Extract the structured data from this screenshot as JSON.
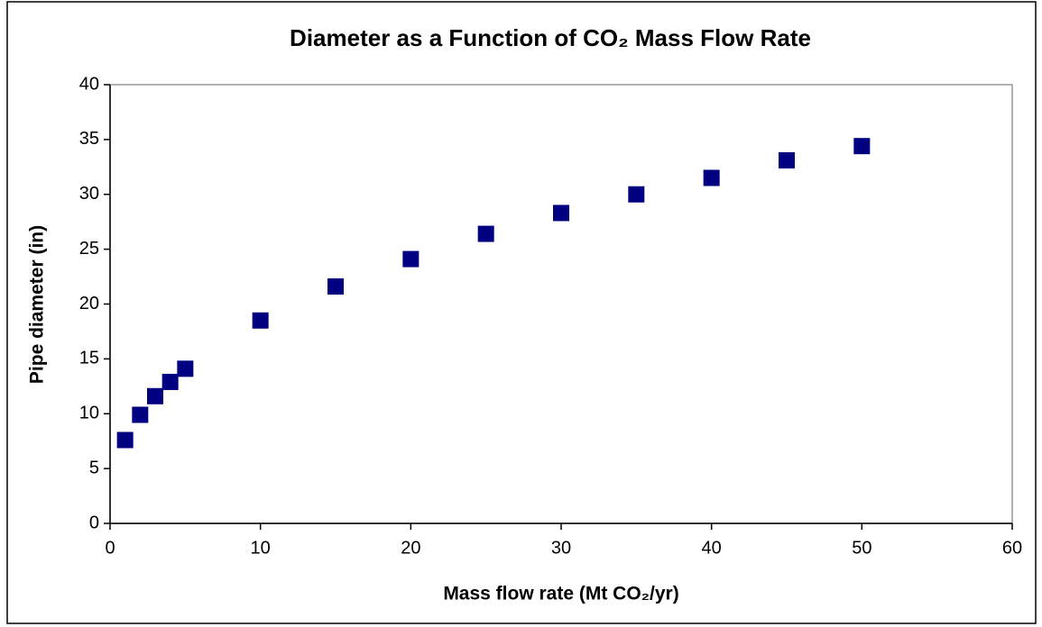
{
  "chart_data": {
    "type": "scatter",
    "title": "Diameter as a Function of CO₂ Mass Flow Rate",
    "x_label": "Mass flow rate (Mt CO₂/yr)",
    "y_label": "Pipe diameter (in)",
    "x": [
      1,
      2,
      3,
      4,
      5,
      10,
      15,
      20,
      25,
      30,
      35,
      40,
      45,
      50
    ],
    "values": [
      7.6,
      9.9,
      11.6,
      12.9,
      14.1,
      18.5,
      21.6,
      24.1,
      26.4,
      28.3,
      30.0,
      31.5,
      33.1,
      34.4
    ],
    "color": "#000080",
    "xlim": [
      0,
      60
    ],
    "xticks": [
      0,
      10,
      20,
      30,
      40,
      50,
      60
    ],
    "ylim": [
      0,
      40
    ],
    "yticks": [
      0,
      5,
      10,
      15,
      20,
      25,
      30,
      35,
      40
    ],
    "grid": false
  }
}
